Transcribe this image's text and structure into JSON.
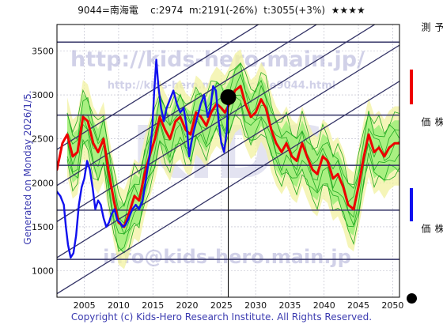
{
  "header": {
    "code_name": "9044=南海電",
    "current": "c:2974",
    "model": "m:2191(-26%)",
    "target": "t:3055(+3%)",
    "stars": "★★★★"
  },
  "generated": "Generated on Monday 2026/1/5.",
  "copyright": "Copyright (c) Kids-Hero Research Institute. All Rights Reserved.",
  "watermarks": {
    "url_main": "http://kids-hero.main.jp/",
    "url_sub": "http://kids-hero.main.jp/code9044.html",
    "big": "KIDS",
    "email": "info@kids-hero.main.jp"
  },
  "legend": [
    {
      "label": "ＡＩ予測",
      "color": "#ee0000"
    },
    {
      "label": "過去の株価",
      "color": "#1010ee"
    },
    {
      "label": "最新の株価",
      "color": "#000000"
    }
  ],
  "colors": {
    "forecast": "#ee0000",
    "history": "#1010ee",
    "band_fill": "#90ee70",
    "band_outer": "#f2f2a0",
    "band_line": "#22aa22",
    "channel": "#333366",
    "grid": "#b8b8c8"
  },
  "chart_data": {
    "type": "line",
    "xlim": [
      2001,
      2051
    ],
    "ylim": [
      700,
      3800
    ],
    "xticks": [
      2005,
      2010,
      2015,
      2020,
      2025,
      2030,
      2035,
      2040,
      2045,
      2050
    ],
    "yticks": [
      1000,
      1500,
      2000,
      2500,
      3000,
      3500
    ],
    "grid": true,
    "latest": {
      "x": 2026.0,
      "y": 2974
    },
    "hlines": [
      1130,
      1690,
      2200,
      2770,
      3600
    ],
    "channel": {
      "slope": 48.3,
      "intercepts_at_2001": [
        740,
        1150,
        1560,
        1970,
        2380
      ]
    },
    "series": [
      {
        "name": "過去の株価",
        "color": "#1010ee",
        "x": [
          2001.0,
          2001.5,
          2002.0,
          2002.3,
          2002.6,
          2003.0,
          2003.4,
          2003.8,
          2004.2,
          2004.6,
          2005.0,
          2005.4,
          2005.8,
          2006.2,
          2006.6,
          2007.0,
          2007.4,
          2007.8,
          2008.2,
          2008.6,
          2009.0,
          2009.4,
          2009.8,
          2010.2,
          2010.6,
          2011.0,
          2011.5,
          2012.0,
          2012.5,
          2013.0,
          2013.5,
          2014.0,
          2014.5,
          2014.9,
          2015.2,
          2015.5,
          2015.8,
          2016.2,
          2016.6,
          2017.0,
          2017.5,
          2018.0,
          2018.5,
          2019.0,
          2019.5,
          2020.0,
          2020.3,
          2020.6,
          2021.0,
          2021.5,
          2022.0,
          2022.5,
          2023.0,
          2023.4,
          2023.8,
          2024.2,
          2024.6,
          2025.0,
          2025.4,
          2025.8,
          2026.0
        ],
        "y": [
          1900,
          1850,
          1750,
          1500,
          1300,
          1150,
          1200,
          1400,
          1750,
          1950,
          2050,
          2250,
          2150,
          1950,
          1700,
          1800,
          1750,
          1600,
          1500,
          1550,
          1650,
          1700,
          1580,
          1550,
          1500,
          1520,
          1600,
          1700,
          1750,
          1700,
          1800,
          2050,
          2300,
          2600,
          3050,
          3400,
          3100,
          2850,
          2700,
          2850,
          2950,
          3050,
          2900,
          2800,
          2850,
          2600,
          2300,
          2450,
          2600,
          2750,
          2900,
          3000,
          2750,
          2850,
          3100,
          3050,
          2700,
          2450,
          2350,
          2600,
          2974
        ]
      },
      {
        "name": "ＡＩ予測",
        "color": "#ee0000",
        "x": [
          2001.0,
          2001.8,
          2002.5,
          2003.3,
          2004.0,
          2004.8,
          2005.5,
          2006.3,
          2007.0,
          2007.8,
          2008.5,
          2009.3,
          2010.0,
          2010.8,
          2011.5,
          2012.3,
          2013.0,
          2013.8,
          2014.5,
          2015.3,
          2016.0,
          2016.8,
          2017.5,
          2018.3,
          2019.0,
          2019.8,
          2020.5,
          2021.3,
          2022.0,
          2022.8,
          2023.5,
          2024.3,
          2025.0,
          2025.5,
          2026.2,
          2027.0,
          2027.8,
          2028.5,
          2029.3,
          2030.0,
          2030.8,
          2031.5,
          2032.3,
          2033.0,
          2033.8,
          2034.5,
          2035.3,
          2036.0,
          2036.8,
          2037.5,
          2038.3,
          2039.0,
          2039.8,
          2040.5,
          2041.3,
          2042.0,
          2042.8,
          2043.5,
          2044.3,
          2045.0,
          2045.8,
          2046.5,
          2047.3,
          2048.0,
          2048.8,
          2049.5,
          2050.3,
          2051.0
        ],
        "y": [
          2150,
          2450,
          2550,
          2300,
          2350,
          2750,
          2700,
          2450,
          2350,
          2500,
          2150,
          1800,
          1550,
          1500,
          1650,
          1850,
          1800,
          2100,
          2300,
          2500,
          2750,
          2600,
          2500,
          2700,
          2750,
          2600,
          2550,
          2800,
          2750,
          2650,
          2800,
          2900,
          2850,
          2800,
          2900,
          3050,
          3100,
          2900,
          2750,
          2800,
          2950,
          2850,
          2600,
          2450,
          2350,
          2450,
          2300,
          2250,
          2450,
          2300,
          2150,
          2100,
          2300,
          2250,
          2050,
          2100,
          1950,
          1750,
          1700,
          1950,
          2300,
          2550,
          2350,
          2400,
          2300,
          2400,
          2450,
          2450
        ]
      }
    ]
  }
}
